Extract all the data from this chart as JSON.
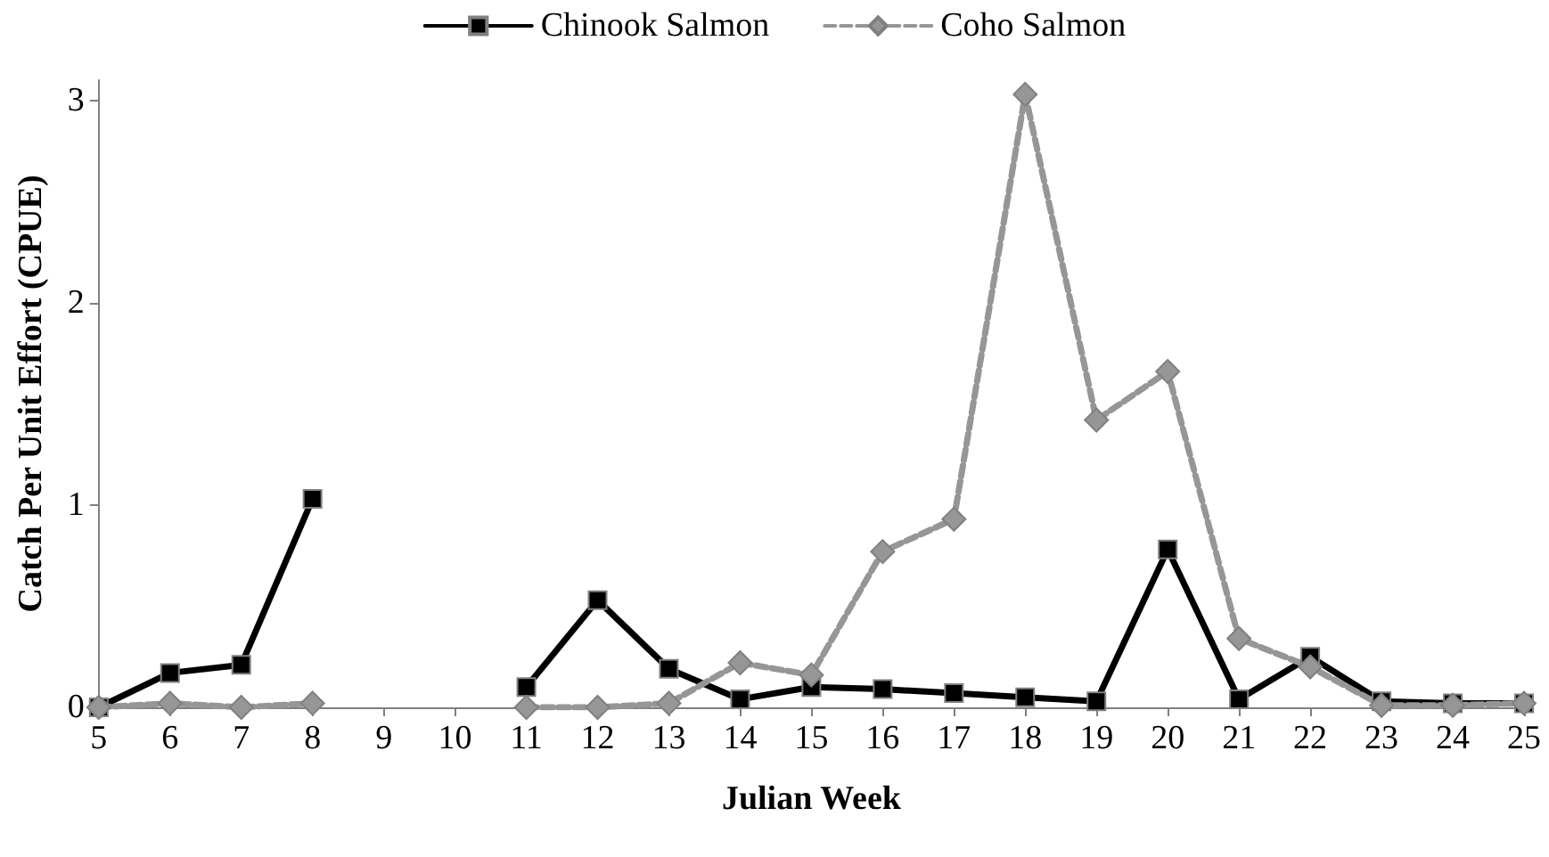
{
  "chart_data": {
    "type": "line",
    "xlabel": "Julian Week",
    "ylabel": "Catch Per Unit Effort (CPUE)",
    "categories": [
      "5",
      "6",
      "7",
      "8",
      "9",
      "10",
      "11",
      "12",
      "13",
      "14",
      "15",
      "16",
      "17",
      "18",
      "19",
      "20",
      "21",
      "22",
      "23",
      "24",
      "25"
    ],
    "series": [
      {
        "name": "Chinook Salmon",
        "color": "#000000",
        "marker": "square",
        "line_style": "solid",
        "values": [
          0,
          0.17,
          0.21,
          1.03,
          null,
          null,
          0.1,
          0.53,
          0.19,
          0.04,
          0.1,
          0.09,
          0.07,
          0.05,
          0.03,
          0.78,
          0.04,
          0.25,
          0.03,
          0.02,
          0.02
        ]
      },
      {
        "name": "Coho Salmon",
        "color": "#969696",
        "marker": "diamond",
        "line_style": "dashed",
        "values": [
          0,
          0.02,
          0,
          0.02,
          null,
          null,
          0,
          0,
          0.02,
          0.22,
          0.16,
          0.77,
          0.93,
          3.03,
          1.42,
          1.66,
          0.34,
          0.2,
          0.01,
          0.01,
          0.02
        ]
      }
    ],
    "ylim": [
      0,
      3.1
    ],
    "yticks": [
      0,
      1,
      2,
      3
    ],
    "grid": false,
    "legend": "top"
  }
}
